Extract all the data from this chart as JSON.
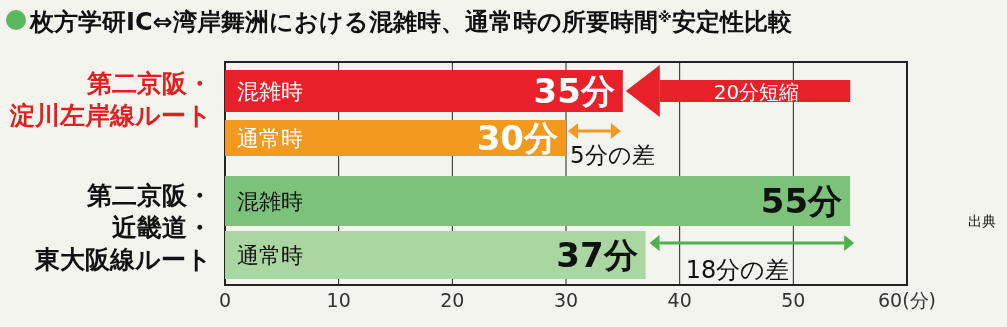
{
  "chart_data": {
    "type": "bar",
    "orientation": "horizontal",
    "title": "枚方学研IC⇔湾岸舞洲における混雑時、通常時の所要時間$^{※}$安定性比較",
    "categories": [
      "混雑時",
      "通常時",
      "混雑時",
      "通常時"
    ],
    "values": [
      35,
      30,
      55,
      37
    ],
    "colors": [
      "#e8202a",
      "#f39a1e",
      "#7dc27a",
      "#a9d6a1"
    ],
    "value_labels": [
      "35分",
      "30分",
      "55分",
      "37分"
    ],
    "xlim": [
      0,
      60
    ],
    "xticks": [
      0,
      10,
      20,
      30,
      40,
      50,
      {
        "value": 60,
        "label": "60(分)"
      }
    ],
    "grid": "x",
    "annotations": [
      "第二京阪・淀川左岸線ルート",
      "第二京阪・近畿道・東大阪線ルート",
      "20分短縮",
      "5分の差",
      "18分の差",
      "出典"
    ]
  }
}
